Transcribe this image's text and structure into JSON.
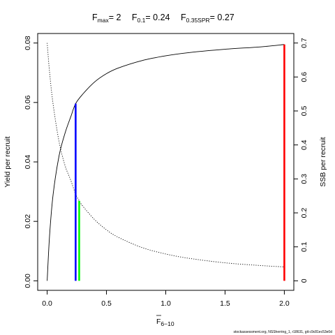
{
  "chart_data": {
    "type": "line",
    "title": {
      "fmax": {
        "sym": "F",
        "sub": "max",
        "value": "= 2"
      },
      "f01": {
        "sym": "F",
        "sub": "0.1",
        "value": "= 0.24"
      },
      "fspr": {
        "sym": "F",
        "sub": "0.35SPR",
        "value": "= 0.27"
      }
    },
    "xlabel": {
      "sym": "F",
      "sub": "6−10"
    },
    "ylabel_left": "Yield per recruit",
    "ylabel_right": "SSB per recruit",
    "xlim": [
      -0.08,
      2.08
    ],
    "ylim_left": [
      -0.0032,
      0.0832
    ],
    "ylim_right": [
      -0.028,
      0.728
    ],
    "x_ticks": [
      "0.0",
      "0.5",
      "1.0",
      "1.5",
      "2.0"
    ],
    "x_tick_values": [
      0,
      0.5,
      1,
      1.5,
      2
    ],
    "y_left_ticks": [
      "0.00",
      "0.02",
      "0.04",
      "0.06",
      "0.08"
    ],
    "y_left_tick_values": [
      0,
      0.02,
      0.04,
      0.06,
      0.08
    ],
    "y_right_ticks": [
      "0",
      "0.1",
      "0.2",
      "0.3",
      "0.4",
      "0.5",
      "0.6",
      "0.7"
    ],
    "y_right_tick_values": [
      0,
      0.1,
      0.2,
      0.3,
      0.4,
      0.5,
      0.6,
      0.7
    ],
    "series": [
      {
        "name": "Yield per recruit",
        "axis": "left",
        "style": "solid",
        "color": "#000000",
        "x": [
          0,
          0.02,
          0.05,
          0.1,
          0.15,
          0.2,
          0.24,
          0.3,
          0.4,
          0.5,
          0.6,
          0.8,
          1.0,
          1.2,
          1.5,
          1.8,
          2.0
        ],
        "y": [
          0,
          0.0151,
          0.029,
          0.042,
          0.0496,
          0.0553,
          0.0596,
          0.0628,
          0.0669,
          0.0697,
          0.0716,
          0.0741,
          0.0757,
          0.0768,
          0.0779,
          0.0787,
          0.0795
        ]
      },
      {
        "name": "SSB per recruit",
        "axis": "right",
        "style": "dotted",
        "color": "#000000",
        "x": [
          0,
          0.02,
          0.05,
          0.1,
          0.15,
          0.2,
          0.24,
          0.27,
          0.3,
          0.4,
          0.5,
          0.6,
          0.8,
          1.0,
          1.2,
          1.5,
          1.8,
          2.0
        ],
        "y": [
          0.7,
          0.615,
          0.52,
          0.41,
          0.34,
          0.295,
          0.255,
          0.236,
          0.22,
          0.18,
          0.15,
          0.128,
          0.098,
          0.079,
          0.066,
          0.053,
          0.045,
          0.041
        ]
      }
    ],
    "reference_lines": [
      {
        "name": "Fmax",
        "x": 2.0,
        "y_top": 0.0795,
        "color": "#ff0000"
      },
      {
        "name": "F0.1",
        "x": 0.24,
        "y_top": 0.0596,
        "color": "#0000ff"
      },
      {
        "name": "F0.35SPR",
        "x": 0.27,
        "y_top": 0.0269,
        "color": "#00ff00"
      }
    ]
  },
  "credit": "stockassessment.org, NSSherring_1, r18631, git:c9c81ec53e0d"
}
